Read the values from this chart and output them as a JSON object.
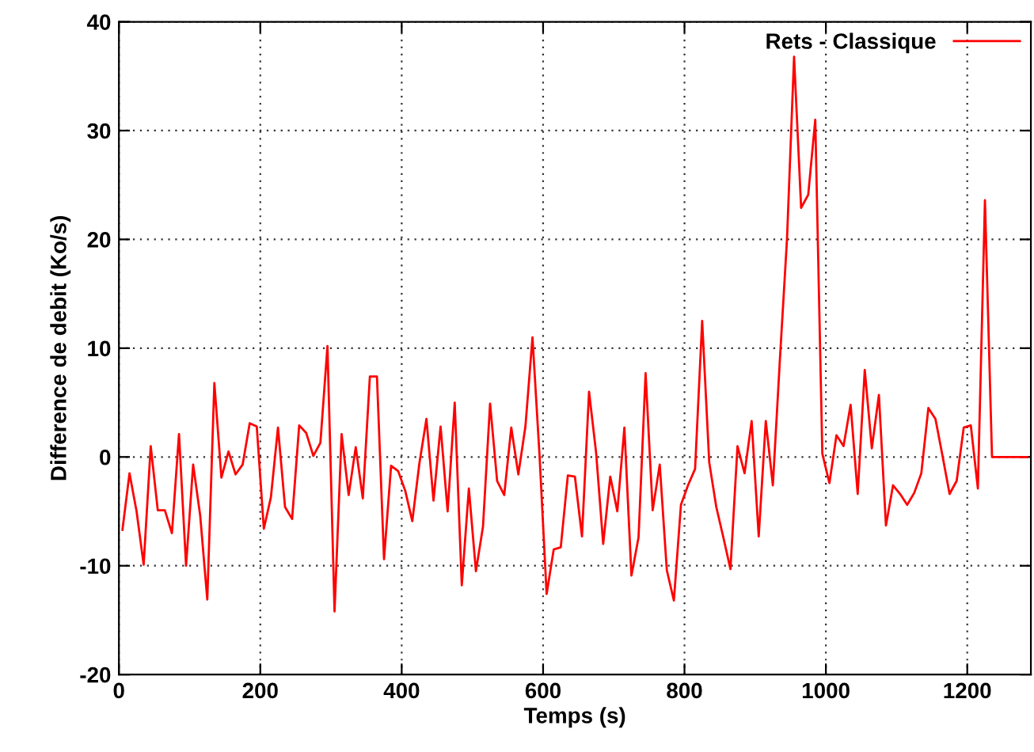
{
  "chart_data": {
    "type": "line",
    "xlabel": "Temps (s)",
    "ylabel": "Difference de debit (Ko/s)",
    "x": [
      5,
      15,
      25,
      35,
      45,
      55,
      65,
      75,
      85,
      95,
      105,
      115,
      125,
      135,
      145,
      155,
      165,
      175,
      185,
      195,
      205,
      215,
      225,
      235,
      245,
      255,
      265,
      275,
      285,
      295,
      305,
      315,
      325,
      335,
      345,
      355,
      365,
      375,
      385,
      395,
      405,
      415,
      425,
      435,
      445,
      455,
      465,
      475,
      485,
      495,
      505,
      515,
      525,
      535,
      545,
      555,
      565,
      575,
      585,
      595,
      605,
      615,
      625,
      635,
      645,
      655,
      665,
      675,
      685,
      695,
      705,
      715,
      725,
      735,
      745,
      755,
      765,
      775,
      785,
      795,
      805,
      815,
      825,
      835,
      845,
      855,
      865,
      875,
      885,
      895,
      905,
      915,
      925,
      935,
      945,
      955,
      965,
      975,
      985,
      995,
      1005,
      1015,
      1025,
      1035,
      1045,
      1055,
      1065,
      1075,
      1085,
      1095,
      1105,
      1115,
      1125,
      1135,
      1145,
      1155,
      1165,
      1175,
      1185,
      1195,
      1205,
      1215,
      1225,
      1235,
      1245,
      1255,
      1265,
      1275,
      1285
    ],
    "series": [
      {
        "name": "Rets - Classique",
        "color": "#ff0000",
        "values": [
          -6.7,
          -1.5,
          -5,
          -9.9,
          1.0,
          -4.9,
          -4.9,
          -7.0,
          2.1,
          -10,
          -0.7,
          -5.4,
          -13.1,
          6.8,
          -1.9,
          0.5,
          -1.6,
          -0.7,
          3.1,
          2.8,
          -6.6,
          -3.7,
          2.7,
          -4.6,
          -5.7,
          2.9,
          2.2,
          0.1,
          1.3,
          10.2,
          -14.2,
          2.1,
          -3.5,
          0.9,
          -3.8,
          7.4,
          7.4,
          -9.4,
          -0.8,
          -1.3,
          -3.1,
          -5.9,
          -0.6,
          3.5,
          -4.0,
          2.8,
          -5.0,
          5.0,
          -11.8,
          -2.9,
          -10.5,
          -6.4,
          4.9,
          -2.2,
          -3.5,
          2.7,
          -1.6,
          2.8,
          11.0,
          0.1,
          -12.6,
          -8.5,
          -8.3,
          -1.7,
          -1.8,
          -7.3,
          6.0,
          0.4,
          -8.0,
          -1.8,
          -5.0,
          2.7,
          -10.9,
          -7.4,
          7.7,
          -4.9,
          -0.7,
          -10.4,
          -13.2,
          -4.4,
          -2.6,
          -1.1,
          12.5,
          -0.5,
          -4.6,
          -7.4,
          -10.3,
          1.0,
          -1.5,
          3.3,
          -7.3,
          3.3,
          -2.6,
          9,
          20,
          36.8,
          22.9,
          24.1,
          31.0,
          0.3,
          -2.4,
          2.0,
          1.0,
          4.8,
          -3.4,
          8.0,
          0.8,
          5.7,
          -6.3,
          -2.6,
          -3.4,
          -4.4,
          -3.3,
          -1.5,
          4.5,
          3.5,
          0.1,
          -3.4,
          -2.2,
          2.7,
          2.9,
          -2.9,
          23.6,
          0,
          0,
          0,
          0,
          0,
          0
        ]
      }
    ],
    "xlim": [
      0,
      1290
    ],
    "xticks": [
      0,
      200,
      400,
      600,
      800,
      1000,
      1200
    ],
    "ylim": [
      -20,
      40
    ],
    "yticks": [
      -20,
      -10,
      0,
      10,
      20,
      30,
      40
    ],
    "grid": true,
    "legend": "top right",
    "marker": "none",
    "line_style": "solid"
  }
}
